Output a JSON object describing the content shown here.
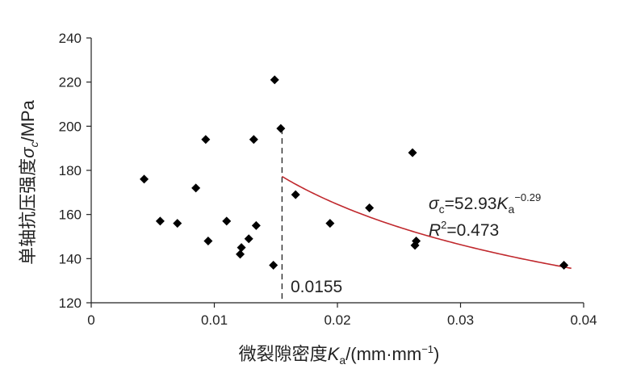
{
  "chart_data": {
    "type": "scatter",
    "xlabel_parts": {
      "main": "微裂隙密度",
      "var": "K",
      "sub": "a",
      "unit_open": "/(mm·mm",
      "unit_sup": "−1",
      "unit_close": ")"
    },
    "ylabel_parts": {
      "main": "单轴抗压强度",
      "var": "σ",
      "sub": "c",
      "unit": "/MPa"
    },
    "xlim": [
      0,
      0.04
    ],
    "ylim": [
      120,
      240
    ],
    "x_ticks": [
      "0",
      "0.01",
      "0.02",
      "0.03",
      "0.04"
    ],
    "x_tick_values": [
      0,
      0.01,
      0.02,
      0.03,
      0.04
    ],
    "y_ticks": [
      "120",
      "140",
      "160",
      "180",
      "200",
      "220",
      "240"
    ],
    "y_tick_values": [
      120,
      140,
      160,
      180,
      200,
      220,
      240
    ],
    "grid": false,
    "points": [
      [
        0.0043,
        176
      ],
      [
        0.0056,
        157
      ],
      [
        0.007,
        156
      ],
      [
        0.0085,
        172
      ],
      [
        0.0093,
        194
      ],
      [
        0.0095,
        148
      ],
      [
        0.011,
        157
      ],
      [
        0.0121,
        142
      ],
      [
        0.0122,
        145
      ],
      [
        0.0128,
        149
      ],
      [
        0.0132,
        194
      ],
      [
        0.0134,
        155
      ],
      [
        0.0148,
        137
      ],
      [
        0.0149,
        221
      ],
      [
        0.0154,
        199
      ],
      [
        0.0166,
        169
      ],
      [
        0.0194,
        156
      ],
      [
        0.0226,
        163
      ],
      [
        0.0261,
        188
      ],
      [
        0.0263,
        146
      ],
      [
        0.0264,
        148
      ],
      [
        0.0384,
        137
      ]
    ],
    "fit": {
      "coefficient": 52.93,
      "exponent": -0.29,
      "x_start": 0.0155,
      "x_end": 0.039,
      "color": "#c0282d",
      "equation": {
        "var": "σ",
        "var_sub": "c",
        "mid": "=52.93",
        "k": "K",
        "k_sub": "a",
        "k_sup": "−0.29"
      },
      "r2": {
        "r": "R",
        "sup": "2",
        "rest": "=0.473"
      }
    },
    "threshold": {
      "x": 0.0155,
      "label": "0.0155"
    },
    "marker_color": "#000000"
  }
}
